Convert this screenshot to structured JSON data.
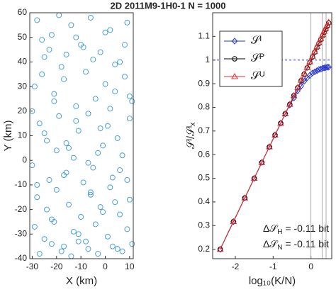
{
  "chart_data": [
    {
      "type": "scatter",
      "title": "2D 2011M9-1H0-1  N = 1000",
      "x_label": "X (km)",
      "y_label": "Y (km)",
      "color": "#3a9ad9",
      "xlim": [
        -31,
        11.5
      ],
      "ylim": [
        -40,
        60
      ],
      "xticks": [
        -30,
        -20,
        -10,
        0,
        10
      ],
      "yticks": [
        -40,
        -30,
        -20,
        -10,
        0,
        10,
        20,
        30,
        40,
        50,
        60
      ],
      "x": [
        -28,
        -25,
        -22,
        -18,
        -14,
        -10,
        -6,
        -2,
        2,
        6,
        9,
        -29,
        -26,
        -21,
        -17,
        -12,
        -8,
        -4,
        0,
        4,
        8,
        11,
        -27,
        -24,
        -19,
        -15,
        -11,
        -7,
        -3,
        1,
        5,
        10,
        -30,
        -23,
        -20,
        -16,
        -13,
        -9,
        -5,
        -1,
        3,
        7,
        -28,
        -24,
        -20,
        -15,
        -10,
        -6,
        -2,
        2,
        6,
        10,
        -29,
        -25,
        -21,
        -17,
        -13,
        -8,
        -4,
        1,
        5,
        9,
        -27,
        -22,
        -18,
        -14,
        -11,
        -7,
        -3,
        3,
        7,
        11,
        -26,
        -23,
        -19,
        -16,
        -12,
        -9,
        -5,
        0,
        4,
        8,
        -30,
        -25,
        -21,
        -16,
        -12,
        -7,
        -2,
        2,
        6,
        10,
        -28,
        -22,
        -17,
        -11,
        -6,
        -1,
        4,
        9
      ],
      "y": [
        57,
        42,
        51,
        38,
        55,
        47,
        58,
        44,
        53,
        40,
        56,
        30,
        35,
        27,
        33,
        22,
        36,
        25,
        31,
        28,
        34,
        24,
        15,
        8,
        18,
        5,
        12,
        19,
        3,
        14,
        9,
        17,
        -2,
        -8,
        4,
        -5,
        1,
        -9,
        -3,
        6,
        -7,
        2,
        -15,
        -20,
        -12,
        -18,
        -23,
        -14,
        -19,
        -11,
        -22,
        -16,
        -27,
        -32,
        -25,
        -35,
        -29,
        -33,
        -26,
        -31,
        -36,
        -28,
        -38,
        -34,
        -37,
        -39,
        -33,
        -36,
        -38,
        -35,
        -37,
        -34,
        49,
        45,
        59,
        43,
        50,
        46,
        41,
        52,
        39,
        47,
        20,
        11,
        24,
        7,
        16,
        -1,
        13,
        21,
        -4,
        26,
        -10,
        -24,
        -6,
        -30,
        -13,
        -21,
        -17,
        -8
      ]
    },
    {
      "type": "line",
      "x_label": "log₁₀(K/N)",
      "y_label": "𝒮ᴵ/𝒮ᴵₓ",
      "xlim": [
        -2.6,
        0.55
      ],
      "ylim": [
        0.16,
        1.2
      ],
      "xticks": [
        -2,
        -1,
        0
      ],
      "yticks": [
        0.2,
        0.3,
        0.4,
        0.5,
        0.6,
        0.7,
        0.8,
        0.9,
        1,
        1.1
      ],
      "vlines": [
        0,
        0.3,
        0.4
      ],
      "hline": 1,
      "legend": "upper-left",
      "x": [
        -2.4,
        -2.05,
        -1.75,
        -1.5,
        -1.3,
        -1.1,
        -0.95,
        -0.8,
        -0.68,
        -0.56,
        -0.45,
        -0.35,
        -0.26,
        -0.18,
        -0.1,
        -0.03,
        0.04,
        0.1,
        0.16,
        0.21,
        0.26,
        0.31,
        0.35,
        0.39,
        0.43,
        0.47
      ],
      "series": [
        {
          "name": "𝒮ᴵ",
          "color": "#2233cc",
          "marker": "diamond",
          "values": [
            0.2,
            0.317,
            0.417,
            0.5,
            0.567,
            0.633,
            0.683,
            0.733,
            0.773,
            0.81,
            0.84,
            0.87,
            0.89,
            0.91,
            0.925,
            0.935,
            0.945,
            0.95,
            0.955,
            0.96,
            0.962,
            0.965,
            0.967,
            0.968,
            0.97,
            0.97
          ]
        },
        {
          "name": "𝒮ᴾ",
          "color": "#000000",
          "marker": "circle",
          "values": [
            0.2,
            0.317,
            0.417,
            0.5,
            0.567,
            0.633,
            0.683,
            0.733,
            0.773,
            0.813,
            0.85,
            0.883,
            0.913,
            0.94,
            0.967,
            0.99,
            1.013,
            1.033,
            1.053,
            1.07,
            1.087,
            1.103,
            1.117,
            1.13,
            1.143,
            1.157
          ]
        },
        {
          "name": "𝒮ᵁ",
          "color": "#e03030",
          "marker": "triangle",
          "values": [
            0.2,
            0.317,
            0.417,
            0.5,
            0.567,
            0.633,
            0.683,
            0.733,
            0.773,
            0.813,
            0.85,
            0.884,
            0.915,
            0.942,
            0.969,
            0.993,
            1.016,
            1.036,
            1.057,
            1.074,
            1.091,
            1.108,
            1.122,
            1.135,
            1.148,
            1.16
          ]
        }
      ],
      "annotations": [
        {
          "text": "Δ𝒮",
          "sub": "H",
          "rest": " = -0.11 bit"
        },
        {
          "text": "Δ𝒮",
          "sub": "N",
          "rest": " = -0.11 bit"
        }
      ]
    }
  ]
}
